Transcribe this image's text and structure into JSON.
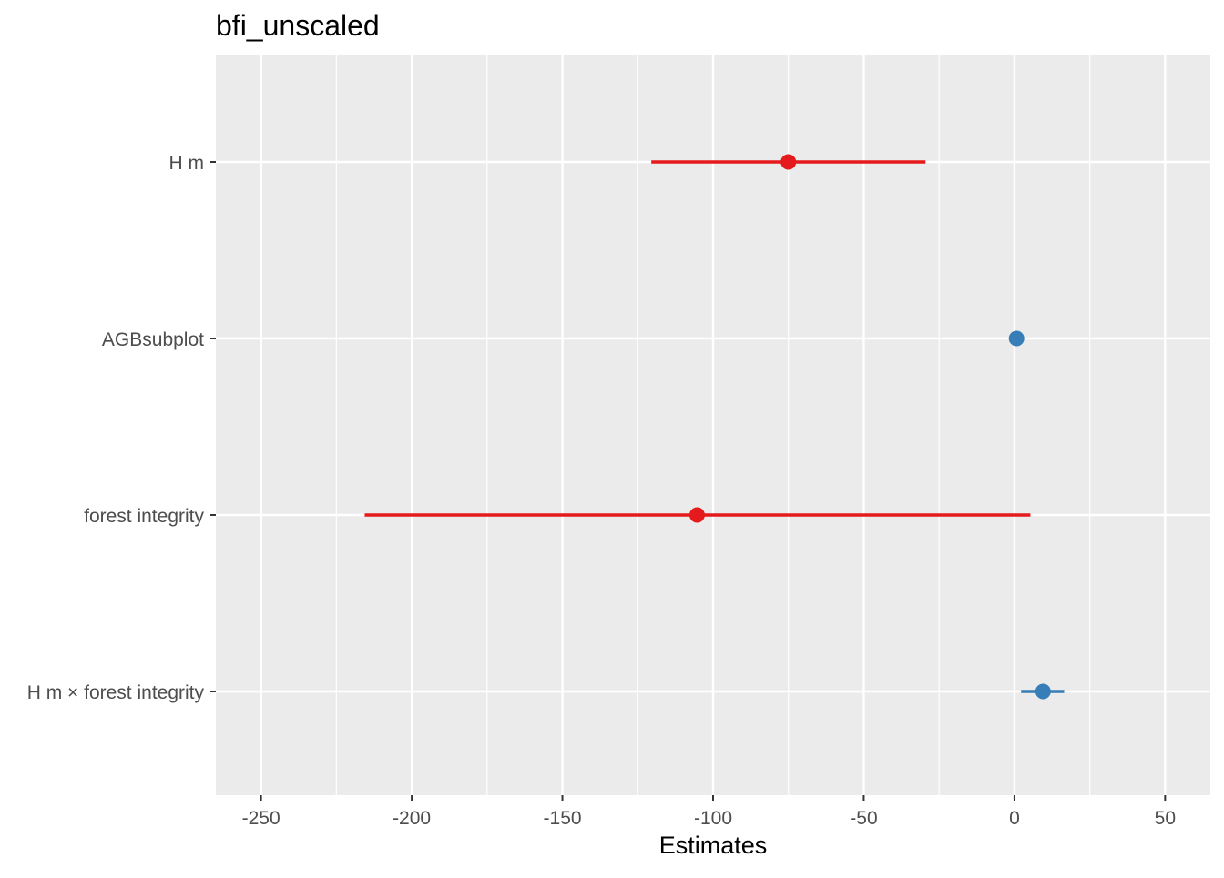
{
  "chart_data": {
    "type": "scatter",
    "subtype": "coefficient-plot",
    "title": "bfi_unscaled",
    "xlabel": "Estimates",
    "ylabel": "",
    "xlim": [
      -265,
      65
    ],
    "x_ticks": [
      -250,
      -200,
      -150,
      -100,
      -50,
      0,
      50
    ],
    "x_tick_labels": [
      "-250",
      "-200",
      "-150",
      "-100",
      "-50",
      "0",
      "50"
    ],
    "grid": true,
    "legend": "none",
    "colors": {
      "negative": "#e41a1c",
      "positive": "#377eb8",
      "panel_background": "#ebebeb",
      "grid": "#ffffff"
    },
    "terms": [
      {
        "label": "H m",
        "estimate": -75,
        "ci_low": -120.5,
        "ci_high": -29.5,
        "color": "#e41a1c"
      },
      {
        "label": "AGBsubplot",
        "estimate": 0.7,
        "ci_low": 0.3,
        "ci_high": 1.1,
        "color": "#377eb8"
      },
      {
        "label": "forest integrity",
        "estimate": -105.3,
        "ci_low": -215.6,
        "ci_high": 5.3,
        "color": "#e41a1c"
      },
      {
        "label": "H m × forest integrity",
        "estimate": 9.5,
        "ci_low": 2.2,
        "ci_high": 16.5,
        "color": "#377eb8"
      }
    ]
  }
}
